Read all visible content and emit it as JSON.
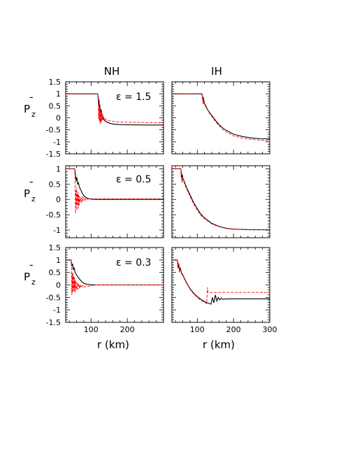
{
  "figure": {
    "column_titles": [
      "NH",
      "IH"
    ],
    "xlabel": "r (km)",
    "ylabel": "P",
    "ylabel_bar": "¯",
    "ylabel_sub": "z",
    "eps_labels": [
      "ε = 1.5",
      "ε = 0.5",
      "ε = 0.3"
    ]
  },
  "chart_data": [
    {
      "type": "line",
      "panel": "NH, ε = 1.5",
      "xlim": [
        30,
        300
      ],
      "ylim": [
        -1.5,
        1.5
      ],
      "yticks": [
        1.5,
        1,
        0.5,
        0,
        -0.5,
        -1,
        -1.5
      ],
      "xticks": [],
      "series": [
        {
          "color": "#000000",
          "style": "solid",
          "x": [
            30,
            118,
            120,
            121,
            122,
            123,
            124,
            126,
            128,
            130,
            134,
            140,
            150,
            160,
            175,
            200,
            250,
            300
          ],
          "y": [
            1,
            1,
            0.85,
            0.5,
            0.75,
            0.35,
            0.55,
            0.2,
            0.35,
            0.05,
            -0.05,
            -0.15,
            -0.22,
            -0.26,
            -0.28,
            -0.29,
            -0.3,
            -0.3
          ]
        },
        {
          "color": "#ff0000",
          "style": "dashed",
          "x": [
            30,
            118,
            120,
            121,
            122,
            123,
            124,
            125,
            126,
            127,
            128,
            129,
            130,
            131,
            132,
            133,
            134,
            136,
            138,
            140,
            145,
            150,
            160,
            175,
            200,
            250,
            300
          ],
          "y": [
            1,
            1,
            0.75,
            -0.05,
            0.55,
            -0.15,
            0.45,
            -0.25,
            0.35,
            -0.2,
            0.25,
            -0.15,
            0.2,
            -0.12,
            0.15,
            -0.08,
            0.1,
            -0.05,
            0,
            -0.08,
            -0.1,
            -0.12,
            -0.15,
            -0.17,
            -0.18,
            -0.2,
            -0.2
          ]
        }
      ]
    },
    {
      "type": "line",
      "panel": "IH, ε = 1.5",
      "xlim": [
        30,
        300
      ],
      "ylim": [
        -1.5,
        1.5
      ],
      "yticks": [],
      "xticks": [],
      "series": [
        {
          "color": "#000000",
          "style": "solid",
          "x": [
            30,
            113,
            114,
            115,
            116,
            117,
            118,
            120,
            125,
            130,
            140,
            150,
            160,
            175,
            200,
            225,
            250,
            275,
            300
          ],
          "y": [
            1,
            1,
            0.9,
            0.85,
            0.7,
            0.85,
            0.75,
            0.6,
            0.45,
            0.3,
            0.1,
            -0.1,
            -0.28,
            -0.48,
            -0.68,
            -0.78,
            -0.84,
            -0.87,
            -0.88
          ]
        },
        {
          "color": "#ff0000",
          "style": "dashed",
          "x": [
            30,
            113,
            114,
            115,
            116,
            117,
            118,
            119,
            120,
            125,
            130,
            140,
            150,
            160,
            175,
            200,
            225,
            250,
            275,
            300
          ],
          "y": [
            1,
            1,
            0.8,
            0.9,
            0.55,
            0.8,
            0.6,
            0.7,
            0.55,
            0.42,
            0.28,
            0.05,
            -0.15,
            -0.33,
            -0.55,
            -0.75,
            -0.85,
            -0.9,
            -0.93,
            -0.95
          ]
        }
      ]
    },
    {
      "type": "line",
      "panel": "NH, ε = 0.5",
      "xlim": [
        30,
        300
      ],
      "ylim": [
        -1.25,
        1.1
      ],
      "yticks": [
        1,
        0.5,
        0,
        -0.5,
        -1
      ],
      "xticks": [],
      "series": [
        {
          "color": "#000000",
          "style": "solid",
          "x": [
            30,
            55,
            57,
            59,
            61,
            63,
            65,
            68,
            72,
            76,
            80,
            85,
            90,
            95,
            100,
            110,
            120,
            150,
            200,
            300
          ],
          "y": [
            1,
            1,
            0.8,
            0.6,
            0.72,
            0.5,
            0.55,
            0.4,
            0.3,
            0.2,
            0.12,
            0.07,
            0.04,
            0.02,
            0.01,
            0,
            0,
            0,
            0,
            0
          ]
        },
        {
          "color": "#ff0000",
          "style": "dashed",
          "x": [
            30,
            55,
            56,
            57,
            58,
            59,
            60,
            61,
            62,
            63,
            64,
            65,
            66,
            67,
            68,
            70,
            72,
            74,
            76,
            78,
            80,
            83,
            86,
            90,
            95,
            100,
            110,
            120,
            150,
            200,
            300
          ],
          "y": [
            1,
            1,
            0.6,
            -0.45,
            0.3,
            -0.2,
            0.4,
            -0.35,
            0.2,
            -0.15,
            0.25,
            -0.3,
            0.15,
            -0.2,
            0.1,
            -0.1,
            0.08,
            -0.12,
            0.1,
            -0.05,
            0.06,
            -0.05,
            0.05,
            0,
            0.03,
            0.02,
            0.02,
            0.02,
            0.02,
            0.02,
            0.02
          ]
        }
      ]
    },
    {
      "type": "line",
      "panel": "IH, ε = 0.5",
      "xlim": [
        30,
        300
      ],
      "ylim": [
        -1.25,
        1.1
      ],
      "yticks": [],
      "xticks": [],
      "series": [
        {
          "color": "#000000",
          "style": "solid",
          "x": [
            30,
            55,
            56,
            57,
            58,
            59,
            60,
            62,
            65,
            70,
            80,
            90,
            100,
            110,
            120,
            140,
            160,
            180,
            200,
            225,
            250,
            300
          ],
          "y": [
            1,
            1,
            0.75,
            0.85,
            0.6,
            0.8,
            0.7,
            0.65,
            0.55,
            0.4,
            0.15,
            -0.1,
            -0.3,
            -0.48,
            -0.6,
            -0.78,
            -0.88,
            -0.94,
            -0.97,
            -0.98,
            -0.99,
            -0.99
          ]
        },
        {
          "color": "#ff0000",
          "style": "dashed",
          "x": [
            30,
            55,
            56,
            57,
            58,
            59,
            60,
            62,
            65,
            70,
            80,
            90,
            100,
            110,
            120,
            140,
            160,
            180,
            200,
            225,
            250,
            300
          ],
          "y": [
            1,
            1,
            0.7,
            0.9,
            0.55,
            0.75,
            0.68,
            0.62,
            0.5,
            0.36,
            0.1,
            -0.15,
            -0.35,
            -0.52,
            -0.63,
            -0.8,
            -0.89,
            -0.95,
            -0.97,
            -0.98,
            -0.99,
            -0.99
          ]
        }
      ]
    },
    {
      "type": "line",
      "panel": "NH, ε = 0.3",
      "xlim": [
        30,
        300
      ],
      "ylim": [
        -1.5,
        1.5
      ],
      "yticks": [
        1.5,
        1,
        0.5,
        0,
        -0.5,
        -1,
        -1.5
      ],
      "xticks": [
        100,
        200
      ],
      "series": [
        {
          "color": "#000000",
          "style": "solid",
          "x": [
            30,
            45,
            47,
            49,
            51,
            53,
            56,
            60,
            65,
            70,
            75,
            80,
            85,
            90,
            100,
            110,
            120,
            150,
            200,
            300
          ],
          "y": [
            1,
            1,
            0.75,
            0.85,
            0.6,
            0.7,
            0.5,
            0.4,
            0.3,
            0.2,
            0.12,
            0.07,
            0.04,
            0.02,
            0.01,
            0,
            0,
            0,
            0,
            0
          ]
        },
        {
          "color": "#ff0000",
          "style": "dashed",
          "x": [
            30,
            45,
            46,
            47,
            48,
            49,
            50,
            51,
            52,
            53,
            54,
            55,
            56,
            57,
            58,
            60,
            62,
            64,
            66,
            68,
            70,
            73,
            76,
            80,
            85,
            90,
            95,
            100,
            110,
            120,
            150,
            200,
            300
          ],
          "y": [
            1,
            1,
            0.8,
            -0.4,
            0.5,
            -0.3,
            0.45,
            -0.25,
            0.35,
            -0.2,
            0.3,
            -0.3,
            0.2,
            -0.25,
            0.15,
            -0.2,
            0.1,
            -0.18,
            0.05,
            -0.15,
            0.02,
            -0.12,
            -0.02,
            -0.1,
            -0.05,
            -0.07,
            -0.04,
            -0.03,
            0,
            0,
            0,
            0,
            0
          ]
        }
      ]
    },
    {
      "type": "line",
      "panel": "IH, ε = 0.3",
      "xlim": [
        30,
        300
      ],
      "ylim": [
        -1.5,
        1.5
      ],
      "yticks": [],
      "xticks": [
        100,
        200,
        300
      ],
      "series": [
        {
          "color": "#000000",
          "style": "solid",
          "x": [
            30,
            45,
            47,
            49,
            51,
            53,
            56,
            60,
            65,
            70,
            80,
            90,
            100,
            110,
            120,
            130,
            138,
            142,
            146,
            150,
            154,
            158,
            162,
            166,
            170,
            180,
            200,
            250,
            300
          ],
          "y": [
            1,
            1,
            0.7,
            0.85,
            0.55,
            0.7,
            0.5,
            0.4,
            0.25,
            0.1,
            -0.15,
            -0.33,
            -0.47,
            -0.58,
            -0.67,
            -0.73,
            -0.77,
            -0.5,
            -0.72,
            -0.4,
            -0.65,
            -0.5,
            -0.6,
            -0.52,
            -0.58,
            -0.56,
            -0.56,
            -0.56,
            -0.56
          ]
        },
        {
          "color": "#ff0000",
          "style": "dashed",
          "x": [
            30,
            45,
            47,
            49,
            51,
            53,
            56,
            60,
            65,
            70,
            80,
            90,
            100,
            110,
            120,
            126,
            128,
            130,
            200,
            250,
            300
          ],
          "y": [
            1,
            1,
            0.65,
            0.9,
            0.5,
            0.7,
            0.45,
            0.38,
            0.22,
            0.08,
            -0.17,
            -0.36,
            -0.5,
            -0.62,
            -0.7,
            -0.75,
            -0.1,
            -0.3,
            -0.3,
            -0.3,
            -0.3
          ]
        }
      ]
    }
  ]
}
